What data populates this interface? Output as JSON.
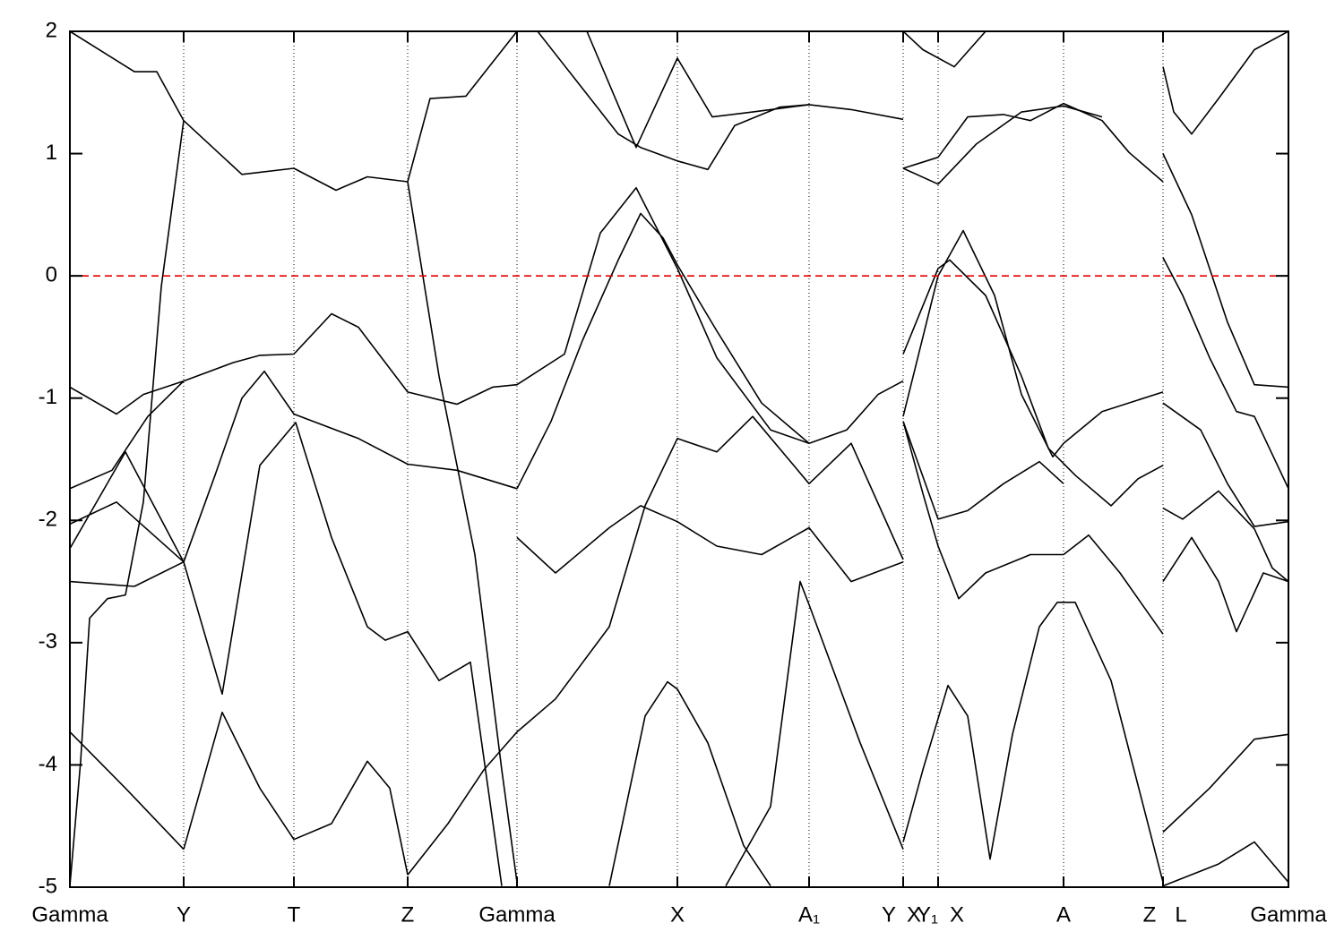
{
  "chart_data": {
    "type": "bands",
    "xlim": [
      0,
      13.6
    ],
    "ylim": [
      -5,
      2
    ],
    "yticks": [
      -5,
      -4,
      -3,
      -2,
      -1,
      0,
      1,
      2
    ],
    "xticks": [
      0,
      1.27,
      2.5,
      3.77,
      4.99,
      6.78,
      8.25,
      9.3,
      9.69,
      11.09,
      12.2,
      13.6
    ],
    "xtick_labels": [
      {
        "value": 0,
        "label": "Gamma"
      },
      {
        "value": 1.27,
        "label": "Y"
      },
      {
        "value": 2.5,
        "label": "T"
      },
      {
        "value": 3.77,
        "label": "Z"
      },
      {
        "value": 4.99,
        "label": "Gamma"
      },
      {
        "value": 6.78,
        "label": "X"
      },
      {
        "value": 8.25,
        "label": "A₁"
      },
      {
        "value": 9.14,
        "label": "Y"
      },
      {
        "value": 9.42,
        "label": "X"
      },
      {
        "value": 9.57,
        "label": "Y₁"
      },
      {
        "value": 9.9,
        "label": "X"
      },
      {
        "value": 11.09,
        "label": "A"
      },
      {
        "value": 12.05,
        "label": "Z"
      },
      {
        "value": 12.4,
        "label": "L"
      },
      {
        "value": 13.6,
        "label": "Gamma"
      }
    ],
    "fermi_level": 0,
    "fermi_color": "#e00000",
    "line_color": "#000000",
    "bands": [
      {
        "x": [
          0,
          0.72,
          0.97,
          1.27,
          1.92,
          2.5,
          2.97,
          3.32,
          3.77,
          4.02,
          4.42,
          4.99
        ],
        "y": [
          2,
          1.67,
          1.67,
          1.27,
          0.83,
          0.88,
          0.7,
          0.81,
          0.77,
          1.45,
          1.47,
          2
        ]
      },
      {
        "x": [
          5.22,
          6.12,
          6.37,
          6.78,
          7.12,
          7.42,
          7.92,
          8.25,
          8.72,
          9.3
        ],
        "y": [
          2,
          1.16,
          1.05,
          0.94,
          0.87,
          1.23,
          1.38,
          1.4,
          1.36,
          1.28
        ]
      },
      {
        "x": [
          5.77,
          6.32,
          6.78,
          7.17,
          7.62,
          8.25
        ],
        "y": [
          2,
          1.05,
          1.78,
          1.3,
          1.34,
          1.4
        ]
      },
      {
        "x": [
          3.77,
          4.12,
          4.52,
          4.82,
          4.99
        ],
        "y": [
          0.77,
          -0.82,
          -2.28,
          -4.04,
          -4.96
        ]
      },
      {
        "x": [
          0,
          0.12,
          0.22,
          0.42,
          0.62,
          0.82,
          1.02,
          1.27
        ],
        "y": [
          -4.99,
          -3.97,
          -2.8,
          -2.64,
          -2.61,
          -1.85,
          -0.09,
          1.27
        ]
      },
      {
        "x": [
          0,
          0.52,
          0.82,
          1.27,
          1.82,
          2.12,
          2.5,
          2.92,
          3.22,
          3.77,
          4.32,
          4.72,
          4.99
        ],
        "y": [
          -0.91,
          -1.13,
          -0.97,
          -0.86,
          -0.71,
          -0.65,
          -0.64,
          -0.31,
          -0.42,
          -0.95,
          -1.05,
          -0.91,
          -0.89
        ]
      },
      {
        "x": [
          4.99,
          5.52,
          5.92,
          6.32,
          6.78,
          7.22,
          7.82,
          8.25,
          8.67,
          9.02,
          9.3
        ],
        "y": [
          -0.89,
          -0.64,
          0.35,
          0.72,
          0.06,
          -0.67,
          -1.26,
          -1.37,
          -1.26,
          -0.97,
          -0.86
        ]
      },
      {
        "x": [
          0,
          0.47,
          0.87,
          1.27
        ],
        "y": [
          -1.74,
          -1.59,
          -1.15,
          -0.86
        ]
      },
      {
        "x": [
          1.27,
          1.62,
          1.92,
          2.17,
          2.5,
          3.22,
          3.77,
          4.32,
          4.99
        ],
        "y": [
          -2.34,
          -1.63,
          -1.0,
          -0.78,
          -1.13,
          -1.33,
          -1.54,
          -1.59,
          -1.74
        ]
      },
      {
        "x": [
          4.99,
          5.37,
          5.72,
          6.12,
          6.37,
          6.62,
          6.78,
          7.22,
          7.72,
          8.25
        ],
        "y": [
          -1.74,
          -1.19,
          -0.53,
          0.13,
          0.51,
          0.31,
          0.09,
          -0.45,
          -1.04,
          -1.37
        ]
      },
      {
        "x": [
          1.27,
          1.7,
          2.12,
          2.52,
          2.92,
          3.32,
          3.52,
          3.77,
          4.12,
          4.47,
          4.82
        ],
        "y": [
          -2.34,
          -3.42,
          -1.55,
          -1.2,
          -2.14,
          -2.87,
          -2.98,
          -2.91,
          -3.31,
          -3.16,
          -4.99
        ]
      },
      {
        "x": [
          1.27,
          1.7,
          2.12,
          2.5,
          2.92,
          3.32,
          3.57,
          3.77
        ],
        "y": [
          -4.69,
          -3.57,
          -4.19,
          -4.61,
          -4.48,
          -3.97,
          -4.19,
          -4.9
        ]
      },
      {
        "x": [
          0,
          0.62,
          1.27
        ],
        "y": [
          -3.73,
          -4.19,
          -4.69
        ]
      },
      {
        "x": [
          0,
          0.72,
          1.27
        ],
        "y": [
          -2.5,
          -2.54,
          -2.34
        ]
      },
      {
        "x": [
          0,
          0.52,
          1.27
        ],
        "y": [
          -2.03,
          -1.85,
          -2.34
        ]
      },
      {
        "x": [
          0,
          0.62,
          1.27
        ],
        "y": [
          -2.23,
          -1.44,
          -2.34
        ]
      },
      {
        "x": [
          3.77,
          4.22,
          4.62,
          4.99,
          5.42,
          6.02,
          6.42,
          6.78,
          7.22,
          7.62,
          8.25,
          8.72,
          9.3
        ],
        "y": [
          -4.9,
          -4.48,
          -4.04,
          -3.73,
          -3.46,
          -2.87,
          -1.88,
          -1.33,
          -1.44,
          -1.15,
          -1.7,
          -1.37,
          -2.32
        ]
      },
      {
        "x": [
          4.99,
          5.42,
          6.02,
          6.37,
          6.78,
          7.22,
          7.72,
          8.25,
          8.72,
          9.3
        ],
        "y": [
          -2.14,
          -2.43,
          -2.06,
          -1.88,
          -2.01,
          -2.21,
          -2.28,
          -2.06,
          -2.5,
          -2.34
        ]
      },
      {
        "x": [
          6.02,
          6.42,
          6.67,
          6.78,
          7.12,
          7.52,
          7.82
        ],
        "y": [
          -4.99,
          -3.6,
          -3.32,
          -3.38,
          -3.82,
          -4.66,
          -4.99
        ]
      },
      {
        "x": [
          7.32,
          7.82,
          8.15,
          8.25,
          8.82,
          9.3
        ],
        "y": [
          -4.99,
          -4.34,
          -2.5,
          -2.69,
          -3.82,
          -4.69
        ]
      },
      {
        "x": [
          9.3,
          9.69,
          10.02,
          10.42,
          10.72,
          11.09,
          11.52,
          11.82,
          12.2
        ],
        "y": [
          0.88,
          0.97,
          1.3,
          1.32,
          1.27,
          1.41,
          1.27,
          1.01,
          0.77
        ]
      },
      {
        "x": [
          9.3,
          9.69,
          10.12,
          10.62,
          11.09,
          11.52
        ],
        "y": [
          0.88,
          0.75,
          1.08,
          1.34,
          1.39,
          1.3
        ]
      },
      {
        "x": [
          9.3,
          9.52,
          9.87,
          10.22
        ],
        "y": [
          2,
          1.85,
          1.71,
          2
        ]
      },
      {
        "x": [
          9.3,
          9.69,
          9.97,
          10.32,
          10.62,
          10.97,
          11.09,
          11.52,
          12.2
        ],
        "y": [
          -1.15,
          0,
          0.37,
          -0.16,
          -0.97,
          -1.48,
          -1.37,
          -1.11,
          -0.95
        ]
      },
      {
        "x": [
          9.3,
          9.69,
          9.82,
          10.22,
          10.62,
          10.92,
          11.22,
          11.62,
          11.92,
          12.2
        ],
        "y": [
          -0.64,
          0.06,
          0.13,
          -0.16,
          -0.82,
          -1.41,
          -1.63,
          -1.88,
          -1.66,
          -1.55
        ]
      },
      {
        "x": [
          9.3,
          9.69,
          10.02,
          10.42,
          10.82,
          11.09
        ],
        "y": [
          -1.19,
          -1.99,
          -1.92,
          -1.7,
          -1.52,
          -1.7
        ]
      },
      {
        "x": [
          9.3,
          9.52,
          9.69,
          9.92,
          10.22,
          10.72,
          11.09,
          11.37,
          11.72,
          12.2
        ],
        "y": [
          -1.19,
          -1.78,
          -2.21,
          -2.64,
          -2.43,
          -2.28,
          -2.28,
          -2.12,
          -2.43,
          -2.93
        ]
      },
      {
        "x": [
          9.3,
          9.52,
          9.8,
          10.02,
          10.27,
          10.52,
          10.82,
          11.02,
          11.22,
          11.62,
          12.2
        ],
        "y": [
          -4.63,
          -4.04,
          -3.35,
          -3.6,
          -4.77,
          -3.75,
          -2.87,
          -2.67,
          -2.67,
          -3.31,
          -4.96
        ]
      },
      {
        "x": [
          12.2,
          12.32,
          12.52,
          12.82,
          13.22,
          13.6
        ],
        "y": [
          1.71,
          1.34,
          1.16,
          1.45,
          1.85,
          2
        ]
      },
      {
        "x": [
          12.2,
          12.52,
          12.92,
          13.22,
          13.6
        ],
        "y": [
          1.0,
          0.5,
          -0.38,
          -0.89,
          -0.91
        ]
      },
      {
        "x": [
          12.2,
          12.42,
          12.72,
          13.02,
          13.22,
          13.6
        ],
        "y": [
          0.15,
          -0.16,
          -0.67,
          -1.11,
          -1.15,
          -1.74
        ]
      },
      {
        "x": [
          12.2,
          12.62,
          12.92,
          13.22,
          13.6
        ],
        "y": [
          -1.04,
          -1.26,
          -1.7,
          -2.05,
          -2.01
        ]
      },
      {
        "x": [
          12.2,
          12.42,
          12.82,
          13.22,
          13.42,
          13.6
        ],
        "y": [
          -1.9,
          -1.99,
          -1.76,
          -2.07,
          -2.39,
          -2.5
        ]
      },
      {
        "x": [
          12.2,
          12.52,
          12.82,
          13.02,
          13.32,
          13.6
        ],
        "y": [
          -2.5,
          -2.14,
          -2.5,
          -2.91,
          -2.43,
          -2.5
        ]
      },
      {
        "x": [
          12.2,
          12.72,
          13.22,
          13.6
        ],
        "y": [
          -4.55,
          -4.19,
          -3.79,
          -3.75
        ]
      },
      {
        "x": [
          12.2,
          12.82,
          13.22,
          13.6
        ],
        "y": [
          -4.99,
          -4.81,
          -4.63,
          -4.96
        ]
      }
    ]
  }
}
